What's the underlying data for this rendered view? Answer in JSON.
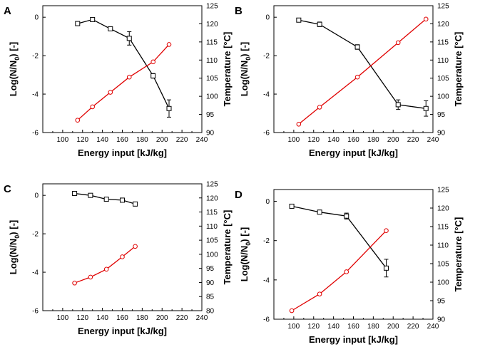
{
  "chart_data": [
    {
      "type": "line",
      "panel_label": "A",
      "xlabel": "Energy input [kJ/kg]",
      "ylabel_left": "Log(N/N0) [-]",
      "ylabel_right": "Temperature [°C]",
      "xlim": [
        80,
        240
      ],
      "xticks": [
        100,
        120,
        140,
        160,
        180,
        200,
        220,
        240
      ],
      "ylim_left": [
        -6,
        0.6
      ],
      "yticks_left": [
        0,
        -2,
        -4,
        -6
      ],
      "ylim_right": [
        90,
        125
      ],
      "yticks_right": [
        90,
        95,
        100,
        105,
        110,
        115,
        120,
        125
      ],
      "series": [
        {
          "name": "Log(N/N0)",
          "axis": "left",
          "color": "#000000",
          "marker": "square",
          "x": [
            115,
            130,
            148,
            167,
            191,
            207
          ],
          "y": [
            -0.33,
            -0.12,
            -0.6,
            -1.1,
            -3.05,
            -4.75
          ],
          "err": [
            0.05,
            0.08,
            0.05,
            0.35,
            0.12,
            0.45
          ]
        },
        {
          "name": "Temperature",
          "axis": "right",
          "color": "#e00000",
          "marker": "circle",
          "x": [
            115,
            130,
            148,
            167,
            191,
            207
          ],
          "y": [
            93.4,
            97.1,
            101.1,
            105.3,
            109.5,
            114.3
          ]
        }
      ]
    },
    {
      "type": "line",
      "panel_label": "B",
      "xlabel": "Energy input [kJ/kg]",
      "ylabel_left": "Log(N/N0) [-]",
      "ylabel_right": "Temperature [°C]",
      "xlim": [
        80,
        240
      ],
      "xticks": [
        100,
        120,
        140,
        160,
        180,
        200,
        220,
        240
      ],
      "ylim_left": [
        -6,
        0.6
      ],
      "yticks_left": [
        0,
        -2,
        -4,
        -6
      ],
      "ylim_right": [
        90,
        125
      ],
      "yticks_right": [
        90,
        95,
        100,
        105,
        110,
        115,
        120,
        125
      ],
      "series": [
        {
          "name": "Log(N/N0)",
          "axis": "left",
          "color": "#000000",
          "marker": "square",
          "x": [
            105,
            126,
            164,
            205,
            233
          ],
          "y": [
            -0.15,
            -0.37,
            -1.55,
            -4.55,
            -4.75
          ],
          "err": [
            0.05,
            0.12,
            0.12,
            0.25,
            0.4
          ]
        },
        {
          "name": "Temperature",
          "axis": "right",
          "color": "#e00000",
          "marker": "circle",
          "x": [
            105,
            126,
            164,
            205,
            233
          ],
          "y": [
            92.3,
            97.0,
            105.3,
            114.8,
            121.3
          ]
        }
      ]
    },
    {
      "type": "line",
      "panel_label": "C",
      "xlabel": "Energy input [kJ/kg]",
      "ylabel_left": "Log(N/N0) [-]",
      "ylabel_right": "Temperature [°C]",
      "xlim": [
        80,
        240
      ],
      "xticks": [
        100,
        120,
        140,
        160,
        180,
        200,
        220,
        240
      ],
      "ylim_left": [
        -6,
        0.6
      ],
      "yticks_left": [
        0,
        -2,
        -4,
        -6
      ],
      "ylim_right": [
        80,
        125
      ],
      "yticks_right": [
        80,
        85,
        90,
        95,
        100,
        105,
        110,
        115,
        120,
        125
      ],
      "series": [
        {
          "name": "Log(N/N0)",
          "axis": "left",
          "color": "#000000",
          "marker": "square",
          "x": [
            112,
            128,
            144,
            160,
            173
          ],
          "y": [
            0.1,
            0.0,
            -0.2,
            -0.25,
            -0.45
          ],
          "err": [
            0.04,
            0.04,
            0.1,
            0.04,
            0.04
          ]
        },
        {
          "name": "Temperature",
          "axis": "right",
          "color": "#e00000",
          "marker": "circle",
          "x": [
            112,
            128,
            144,
            160,
            173
          ],
          "y": [
            89.8,
            91.9,
            94.7,
            99.1,
            102.8
          ]
        }
      ]
    },
    {
      "type": "line",
      "panel_label": "D",
      "xlabel": "Energy input [kJ/kg]",
      "ylabel_left": "Log(N/N0) [-]",
      "ylabel_right": "Temperature [°C]",
      "xlim": [
        80,
        240
      ],
      "xticks": [
        100,
        120,
        140,
        160,
        180,
        200,
        220,
        240
      ],
      "ylim_left": [
        -6,
        0.6
      ],
      "yticks_left": [
        0,
        -2,
        -4,
        -6
      ],
      "ylim_right": [
        90,
        125
      ],
      "yticks_right": [
        90,
        95,
        100,
        105,
        110,
        115,
        120,
        125
      ],
      "series": [
        {
          "name": "Log(N/N0)",
          "axis": "left",
          "color": "#000000",
          "marker": "square",
          "x": [
            98,
            126,
            153,
            193
          ],
          "y": [
            -0.25,
            -0.55,
            -0.75,
            -3.4
          ],
          "err": [
            0.04,
            0.1,
            0.15,
            0.45
          ]
        },
        {
          "name": "Temperature",
          "axis": "right",
          "color": "#e00000",
          "marker": "circle",
          "x": [
            98,
            126,
            153,
            193
          ],
          "y": [
            92.3,
            96.8,
            102.8,
            113.9
          ]
        }
      ]
    }
  ]
}
